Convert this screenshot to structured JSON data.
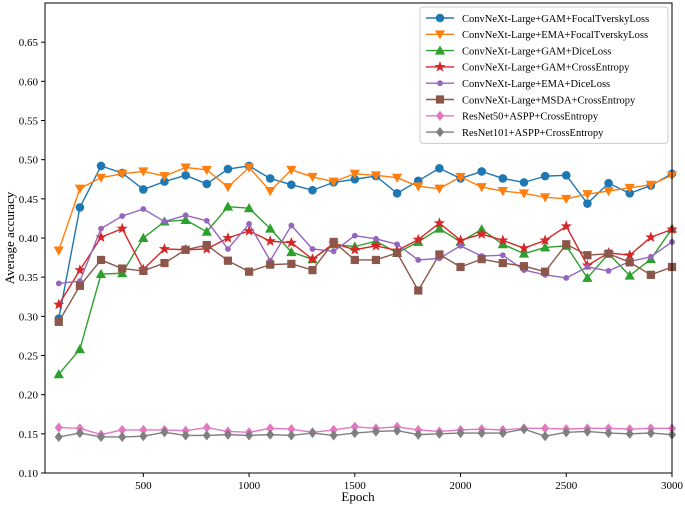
{
  "chart_data": {
    "type": "line",
    "title": "",
    "xlabel": "Epoch",
    "ylabel": "Average accuracy",
    "xlim": [
      35,
      3000
    ],
    "ylim": [
      0.1,
      0.7
    ],
    "xticks": [
      500,
      1000,
      1500,
      2000,
      2500,
      3000
    ],
    "yticks": [
      0.1,
      0.15,
      0.2,
      0.25,
      0.3,
      0.35,
      0.4,
      0.45,
      0.5,
      0.55,
      0.6,
      0.65
    ],
    "xtick_labels": [
      "500",
      "1000",
      "1500",
      "2000",
      "2500",
      "3000"
    ],
    "ytick_labels": [
      "0.10",
      "0.15",
      "0.20",
      "0.25",
      "0.30",
      "0.35",
      "0.40",
      "0.45",
      "0.50",
      "0.55",
      "0.60",
      "0.65"
    ],
    "legend_position": "top-right",
    "x": [
      100,
      200,
      300,
      400,
      500,
      600,
      700,
      800,
      900,
      1000,
      1100,
      1200,
      1300,
      1400,
      1500,
      1600,
      1700,
      1800,
      1900,
      2000,
      2100,
      2200,
      2300,
      2400,
      2500,
      2600,
      2700,
      2800,
      2900,
      3000
    ],
    "series": [
      {
        "name": "ConvNeXt-Large+GAM+FocalTverskyLoss",
        "color": "#1f77b4",
        "marker": "circle",
        "values": [
          0.297,
          0.439,
          0.492,
          0.483,
          0.462,
          0.472,
          0.48,
          0.469,
          0.488,
          0.492,
          0.476,
          0.468,
          0.461,
          0.471,
          0.475,
          0.479,
          0.457,
          0.473,
          0.489,
          0.476,
          0.485,
          0.476,
          0.471,
          0.479,
          0.48,
          0.444,
          0.47,
          0.457,
          0.467,
          0.482
        ]
      },
      {
        "name": "ConvNeXt-Large+EMA+FocalTverskyLoss",
        "color": "#ff7f0e",
        "marker": "triangle-down",
        "values": [
          0.384,
          0.463,
          0.477,
          0.482,
          0.485,
          0.479,
          0.49,
          0.487,
          0.465,
          0.49,
          0.46,
          0.487,
          0.478,
          0.472,
          0.482,
          0.48,
          0.477,
          0.466,
          0.463,
          0.478,
          0.465,
          0.46,
          0.457,
          0.452,
          0.45,
          0.456,
          0.46,
          0.464,
          0.468,
          0.48
        ]
      },
      {
        "name": "ConvNeXt-Large+GAM+DiceLoss",
        "color": "#2ca02c",
        "marker": "triangle-up",
        "values": [
          0.226,
          0.258,
          0.354,
          0.355,
          0.4,
          0.421,
          0.423,
          0.408,
          0.44,
          0.438,
          0.412,
          0.382,
          0.373,
          0.392,
          0.389,
          0.396,
          0.381,
          0.395,
          0.412,
          0.395,
          0.411,
          0.392,
          0.38,
          0.388,
          0.39,
          0.349,
          0.38,
          0.352,
          0.373,
          0.412
        ]
      },
      {
        "name": "ConvNeXt-Large+GAM+CrossEntropy",
        "color": "#d62728",
        "marker": "star",
        "values": [
          0.315,
          0.359,
          0.401,
          0.412,
          0.36,
          0.386,
          0.385,
          0.386,
          0.4,
          0.409,
          0.396,
          0.394,
          0.373,
          0.393,
          0.385,
          0.39,
          0.384,
          0.398,
          0.419,
          0.397,
          0.405,
          0.397,
          0.387,
          0.397,
          0.415,
          0.365,
          0.381,
          0.378,
          0.401,
          0.411
        ]
      },
      {
        "name": "ConvNeXt-Large+EMA+DiceLoss",
        "color": "#9467bd",
        "marker": "circle-small",
        "values": [
          0.342,
          0.345,
          0.412,
          0.428,
          0.437,
          0.421,
          0.429,
          0.422,
          0.386,
          0.418,
          0.371,
          0.416,
          0.386,
          0.383,
          0.403,
          0.399,
          0.392,
          0.372,
          0.374,
          0.39,
          0.377,
          0.378,
          0.359,
          0.353,
          0.349,
          0.363,
          0.358,
          0.37,
          0.376,
          0.395
        ]
      },
      {
        "name": "ConvNeXt-Large+MSDA+CrossEntropy",
        "color": "#8c564b",
        "marker": "square",
        "values": [
          0.293,
          0.339,
          0.372,
          0.361,
          0.358,
          0.368,
          0.385,
          0.391,
          0.371,
          0.357,
          0.366,
          0.367,
          0.359,
          0.395,
          0.372,
          0.372,
          0.381,
          0.333,
          0.379,
          0.363,
          0.373,
          0.368,
          0.364,
          0.357,
          0.392,
          0.378,
          0.38,
          0.369,
          0.353,
          0.363
        ]
      },
      {
        "name": "ResNet50+ASPP+CrossEntropy",
        "color": "#e377c2",
        "marker": "diamond",
        "values": [
          0.158,
          0.157,
          0.149,
          0.155,
          0.155,
          0.155,
          0.154,
          0.158,
          0.153,
          0.152,
          0.157,
          0.156,
          0.152,
          0.155,
          0.159,
          0.157,
          0.159,
          0.155,
          0.153,
          0.155,
          0.156,
          0.155,
          0.157,
          0.157,
          0.156,
          0.157,
          0.157,
          0.156,
          0.157,
          0.157
        ]
      },
      {
        "name": "ResNet101+ASPP+CrossEntropy",
        "color": "#7f7f7f",
        "marker": "diamond",
        "values": [
          0.146,
          0.151,
          0.146,
          0.146,
          0.147,
          0.152,
          0.148,
          0.148,
          0.149,
          0.148,
          0.149,
          0.148,
          0.151,
          0.148,
          0.151,
          0.153,
          0.154,
          0.149,
          0.15,
          0.151,
          0.151,
          0.151,
          0.156,
          0.147,
          0.152,
          0.153,
          0.151,
          0.15,
          0.151,
          0.149
        ]
      }
    ]
  }
}
